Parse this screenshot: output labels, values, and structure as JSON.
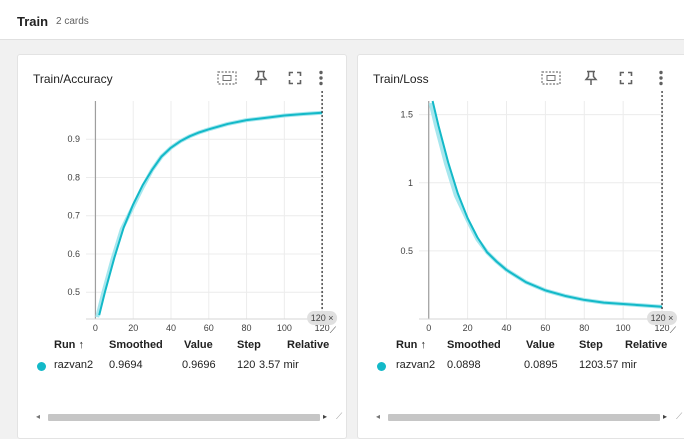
{
  "section": {
    "title": "Train",
    "count": "2 cards"
  },
  "colors": {
    "accent": "#13b9c8",
    "accent_light": "#a7e7ee",
    "axis": "#9e9e9e",
    "grid": "#ececec"
  },
  "icons": [
    "fit-domain-icon",
    "pin-icon",
    "fullscreen-icon",
    "more-vert-icon"
  ],
  "cards": [
    {
      "title": "Train/Accuracy",
      "chart_tag": "120 ×",
      "table": {
        "headers": {
          "run": "Run ↑",
          "smoothed": "Smoothed",
          "value": "Value",
          "step": "Step",
          "relative": "Relative"
        },
        "row": {
          "run": "razvan2",
          "smoothed": "0.9694",
          "value": "0.9696",
          "step": "120",
          "relative": "3.57 mir"
        }
      }
    },
    {
      "title": "Train/Loss",
      "chart_tag": "120 ×",
      "table": {
        "headers": {
          "run": "Run ↑",
          "smoothed": "Smoothed",
          "value": "Value",
          "step": "Step",
          "relative": "Relative"
        },
        "row": {
          "run": "razvan2",
          "smoothed": "0.0898",
          "value": "0.0895",
          "step": "120",
          "relative": "3.57 mir"
        }
      }
    }
  ],
  "chart_data": [
    {
      "type": "line",
      "title": "Train/Accuracy",
      "xlabel": "",
      "ylabel": "",
      "xlim": [
        -5,
        121
      ],
      "ylim": [
        0.43,
        1.0
      ],
      "xticks": [
        "0",
        "20",
        "40",
        "60",
        "80",
        "100",
        "120"
      ],
      "yticks": [
        "0.5",
        "0.6",
        "0.7",
        "0.8",
        "0.9"
      ],
      "hover_step": 120,
      "series": [
        {
          "name": "razvan2",
          "x": [
            2,
            5,
            10,
            15,
            20,
            25,
            30,
            35,
            40,
            45,
            50,
            55,
            60,
            70,
            80,
            90,
            100,
            110,
            120
          ],
          "values": [
            0.44,
            0.5,
            0.59,
            0.67,
            0.73,
            0.78,
            0.82,
            0.855,
            0.878,
            0.895,
            0.908,
            0.918,
            0.926,
            0.94,
            0.95,
            0.956,
            0.962,
            0.966,
            0.9694
          ]
        }
      ]
    },
    {
      "type": "line",
      "title": "Train/Loss",
      "xlabel": "",
      "ylabel": "",
      "xlim": [
        -5,
        121
      ],
      "ylim": [
        0.0,
        1.6
      ],
      "xticks": [
        "0",
        "20",
        "40",
        "60",
        "80",
        "100",
        "120"
      ],
      "yticks": [
        "0.5",
        "1",
        "1.5"
      ],
      "hover_step": 120,
      "series": [
        {
          "name": "razvan2",
          "x": [
            2,
            5,
            10,
            15,
            20,
            25,
            30,
            35,
            40,
            50,
            60,
            70,
            80,
            90,
            100,
            110,
            120
          ],
          "values": [
            1.6,
            1.42,
            1.15,
            0.92,
            0.74,
            0.6,
            0.49,
            0.42,
            0.36,
            0.27,
            0.21,
            0.17,
            0.14,
            0.12,
            0.11,
            0.1,
            0.0898
          ]
        }
      ]
    }
  ]
}
